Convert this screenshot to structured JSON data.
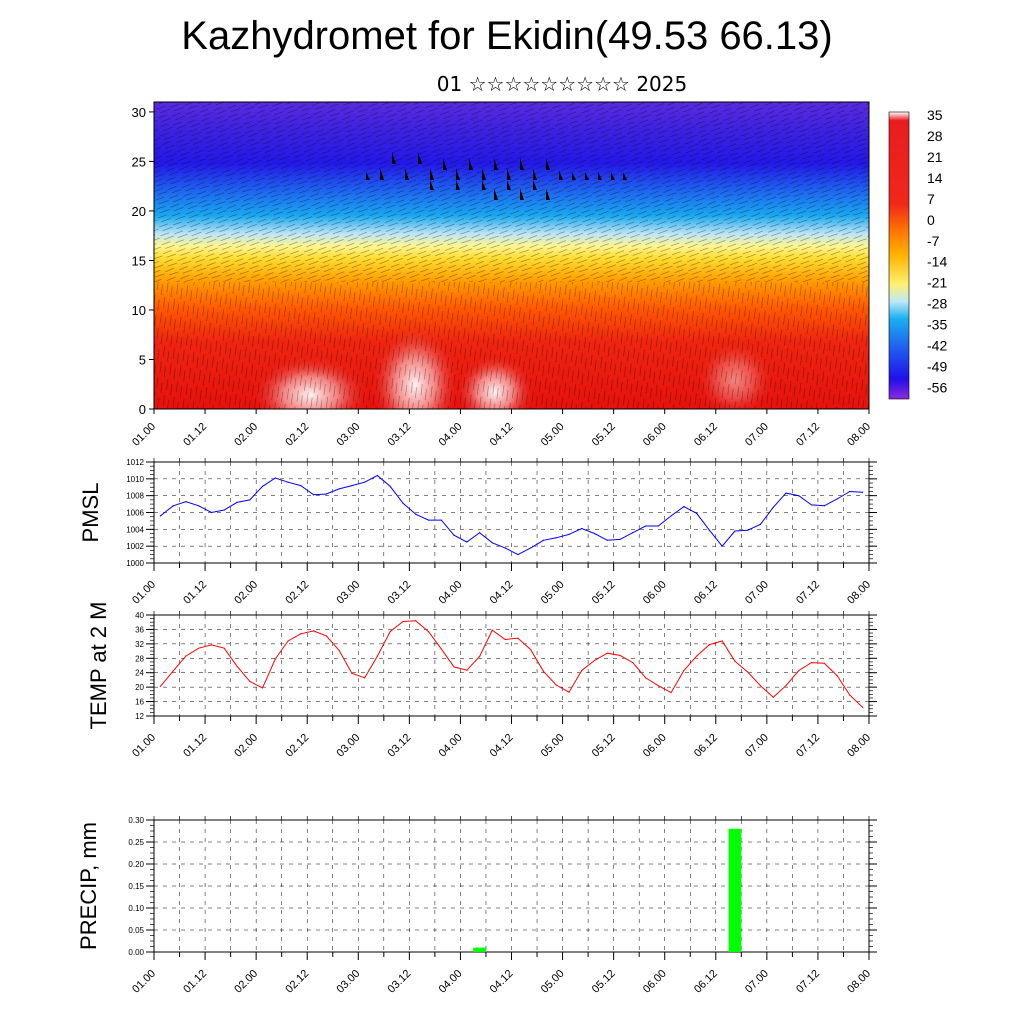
{
  "title": "Kazhydromet for Ekidin(49.53 66.13)",
  "subtitle": "01 ☆☆☆☆☆☆☆☆☆ 2025",
  "time_ticks": [
    "01.00",
    "01.12",
    "02.00",
    "02.12",
    "03.00",
    "03.12",
    "04.00",
    "04.12",
    "05.00",
    "05.12",
    "06.00",
    "06.12",
    "07.00",
    "07.12",
    "08.00"
  ],
  "chart_data": [
    {
      "type": "heatmap",
      "name": "cross-section",
      "ylim": [
        0,
        31
      ],
      "yticks": [
        0,
        5,
        10,
        15,
        20,
        25,
        30
      ],
      "colorbar_labels": [
        "35",
        "28",
        "21",
        "14",
        "7",
        "0",
        "-7",
        "-14",
        "-21",
        "-28",
        "-35",
        "-42",
        "-49",
        "-56"
      ],
      "colorbar_range": [
        -63,
        42
      ],
      "colors": {
        "warm_max": "#ffffff",
        "warm": "#e8140f",
        "orange": "#ff8a00",
        "yellow": "#ffe840",
        "cool": "#19a6f0",
        "cold": "#2414e8",
        "coldest": "#8a2ae0"
      }
    },
    {
      "type": "line",
      "ylabel": "PMSL",
      "ylim": [
        1000,
        1012
      ],
      "yticks": [
        1000,
        1002,
        1004,
        1006,
        1008,
        1010,
        1012
      ],
      "color": "#0000ff",
      "x": [
        0.125,
        0.375,
        0.625,
        0.875,
        1.125,
        1.375,
        1.625,
        1.875,
        2.125,
        2.375,
        2.625,
        2.875,
        3.125,
        3.375,
        3.625,
        3.875,
        4.125,
        4.375,
        4.625,
        4.875,
        5.125,
        5.375,
        5.625,
        5.875,
        6.125,
        6.375,
        6.625,
        6.875,
        7.125,
        7.375,
        7.625,
        7.875,
        8.125,
        8.375,
        8.625,
        8.875,
        9.125,
        9.375,
        9.625,
        9.875,
        10.125,
        10.375,
        10.625,
        10.875,
        11.125,
        11.375,
        11.625,
        11.875,
        12.125,
        12.375,
        12.625,
        12.875,
        13.125,
        13.375,
        13.625,
        13.875
      ],
      "values": [
        1005.6,
        1006.8,
        1007.3,
        1006.8,
        1006.0,
        1006.3,
        1007.2,
        1007.5,
        1009.1,
        1010.1,
        1009.6,
        1009.2,
        1008.1,
        1008.2,
        1008.8,
        1009.2,
        1009.6,
        1010.4,
        1009.1,
        1007.1,
        1005.8,
        1005.1,
        1005.1,
        1003.3,
        1002.5,
        1003.6,
        1002.4,
        1001.8,
        1001.0,
        1001.8,
        1002.7,
        1003.0,
        1003.4,
        1004.1,
        1003.5,
        1002.7,
        1002.8,
        1003.6,
        1004.4,
        1004.4,
        1005.6,
        1006.7,
        1005.9,
        1003.9,
        1002.0,
        1003.8,
        1003.9,
        1004.6,
        1006.6,
        1008.3,
        1008.0,
        1006.9,
        1006.8,
        1007.6,
        1008.5,
        1008.4
      ]
    },
    {
      "type": "line",
      "ylabel": "TEMP at 2 M",
      "ylim": [
        12,
        40
      ],
      "yticks": [
        12,
        16,
        20,
        24,
        28,
        32,
        36,
        40
      ],
      "color": "#ff0000",
      "x": [
        0.125,
        0.375,
        0.625,
        0.875,
        1.125,
        1.375,
        1.625,
        1.875,
        2.125,
        2.375,
        2.625,
        2.875,
        3.125,
        3.375,
        3.625,
        3.875,
        4.125,
        4.375,
        4.625,
        4.875,
        5.125,
        5.375,
        5.625,
        5.875,
        6.125,
        6.375,
        6.625,
        6.875,
        7.125,
        7.375,
        7.625,
        7.875,
        8.125,
        8.375,
        8.625,
        8.875,
        9.125,
        9.375,
        9.625,
        9.875,
        10.125,
        10.375,
        10.625,
        10.875,
        11.125,
        11.375,
        11.625,
        11.875,
        12.125,
        12.375,
        12.625,
        12.875,
        13.125,
        13.375,
        13.625,
        13.875
      ],
      "values": [
        20.2,
        24.5,
        28.6,
        30.8,
        31.7,
        30.8,
        25.8,
        21.6,
        19.8,
        27.8,
        32.8,
        34.8,
        35.6,
        34.2,
        30.2,
        23.8,
        22.6,
        28.6,
        35.4,
        38.2,
        38.4,
        35.4,
        30.6,
        25.6,
        24.7,
        28.5,
        35.8,
        33.2,
        33.6,
        30.4,
        24.4,
        20.6,
        18.6,
        24.6,
        27.4,
        29.4,
        28.8,
        26.8,
        22.6,
        20.4,
        18.5,
        24.6,
        28.6,
        31.8,
        32.8,
        27.2,
        24.2,
        20.4,
        17.2,
        20.4,
        24.6,
        26.8,
        26.6,
        23.2,
        17.8,
        14.4
      ]
    },
    {
      "type": "bar",
      "ylabel": "PRECIP, mm",
      "ylim": [
        0,
        0.3
      ],
      "yticks": [
        "0.00",
        "0.05",
        "0.10",
        "0.15",
        "0.20",
        "0.25",
        "0.30"
      ],
      "color": "#00ff00",
      "x": [
        6.375,
        11.375
      ],
      "values": [
        0.01,
        0.28
      ]
    }
  ]
}
